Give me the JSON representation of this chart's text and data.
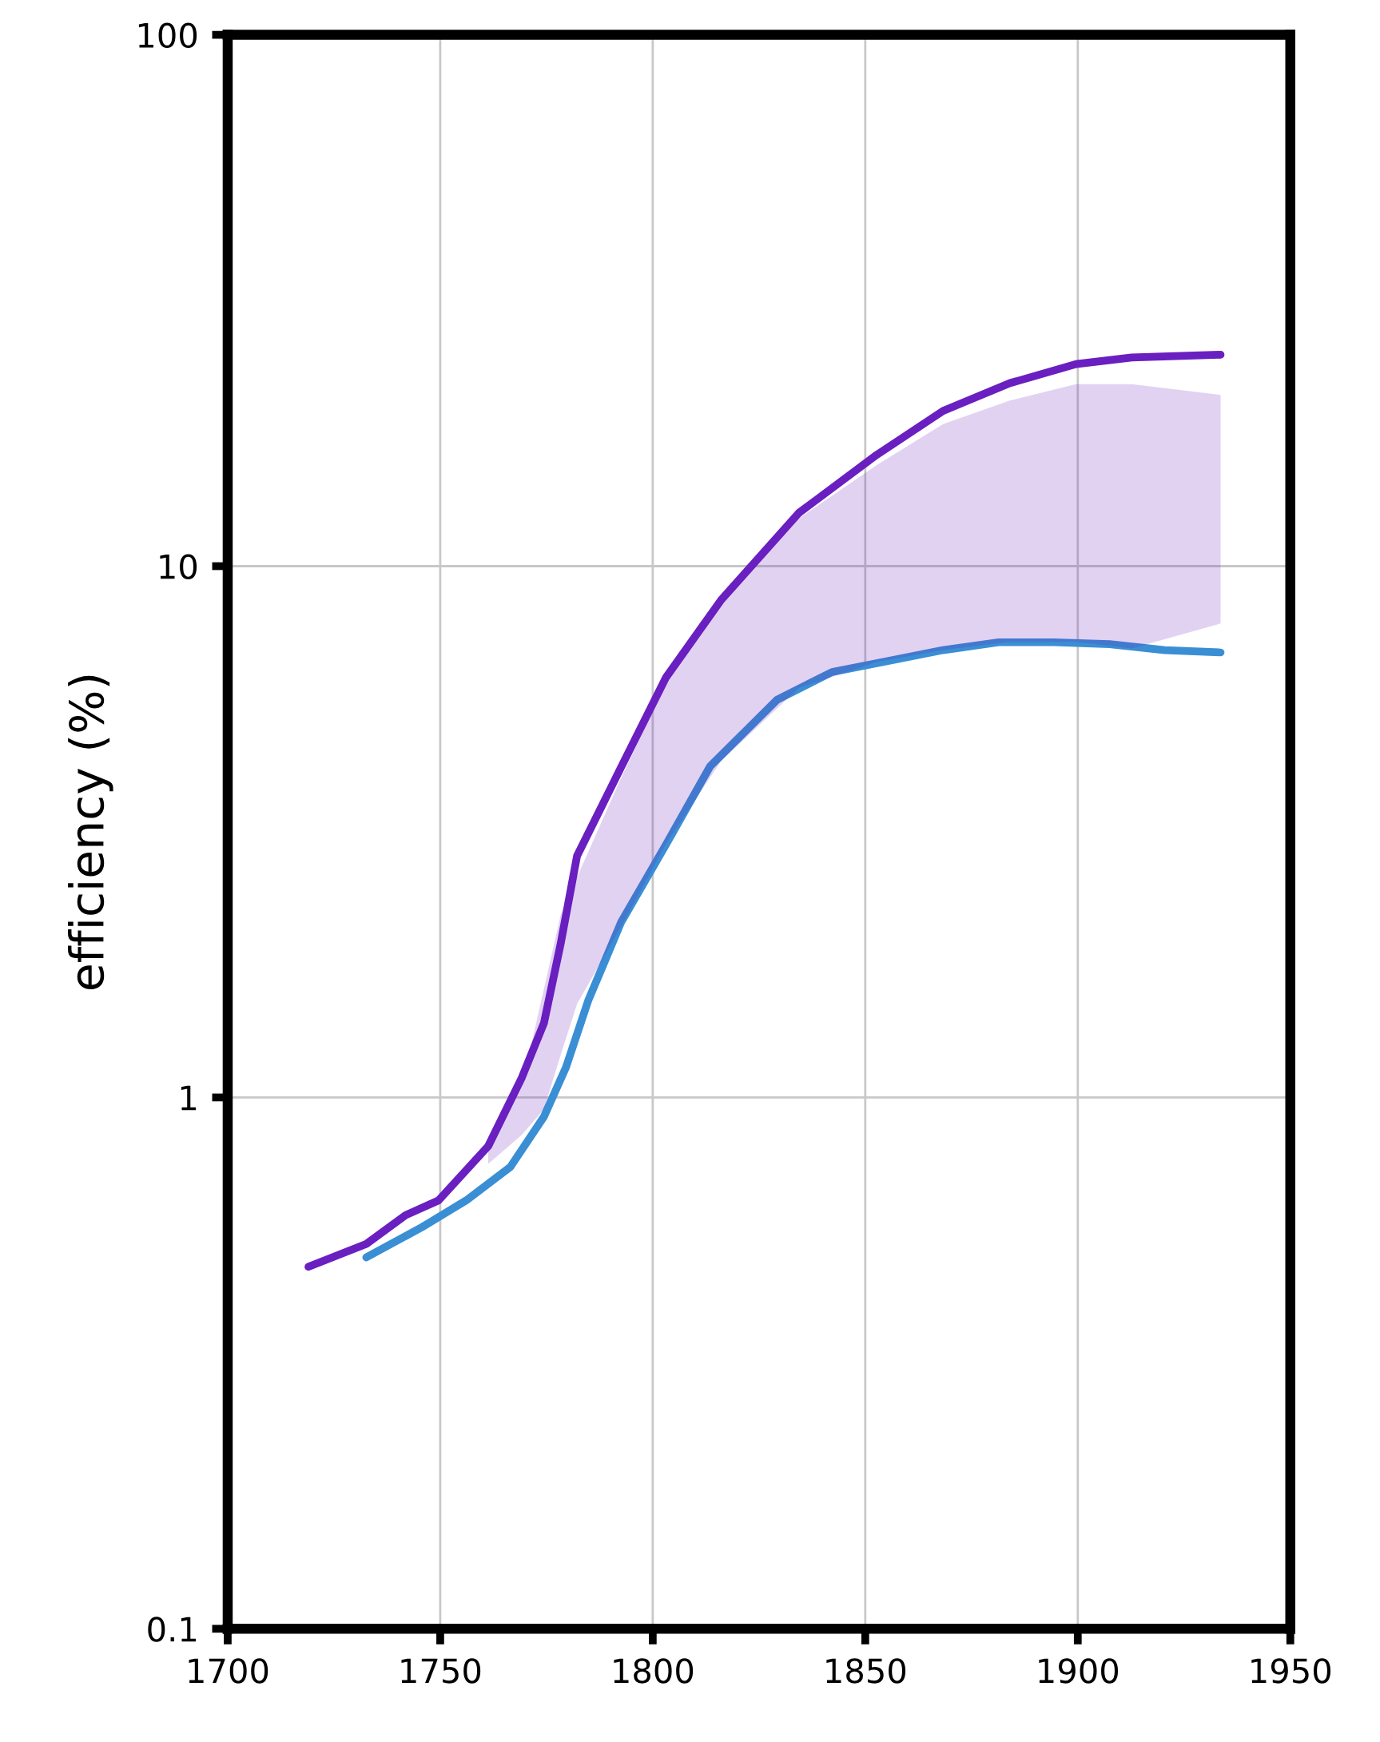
{
  "chart_data": {
    "type": "line",
    "ylabel": "efficiency (%)",
    "log": "y",
    "grid": true,
    "xlim": [
      1700,
      1950
    ],
    "xticks": [
      1700,
      1750,
      1800,
      1850,
      1900,
      1950
    ],
    "ylim": [
      0.1,
      100
    ],
    "yticks": [
      0.1,
      1,
      10,
      100
    ],
    "series": [
      {
        "color": "#6a1fc0",
        "x": [
          1719,
          1732.6,
          1741.8,
          1749.6,
          1761.3,
          1769.2,
          1774.4,
          1778.3,
          1782.2,
          1792.6,
          1803.1,
          1816.1,
          1834.4,
          1852.7,
          1868.3,
          1884,
          1899.6,
          1912.7,
          1933.6
        ],
        "values": [
          0.48,
          0.53,
          0.6,
          0.64,
          0.81,
          1.09,
          1.38,
          1.94,
          2.85,
          4.19,
          6.17,
          8.64,
          12.6,
          16.2,
          19.6,
          22.1,
          24,
          24.7,
          25
        ],
        "lower": [
          null,
          null,
          null,
          null,
          0.75,
          0.85,
          0.95,
          1.2,
          1.5,
          2.1,
          3.0,
          4.3,
          5.9,
          6.6,
          6.95,
          7.2,
          7.2,
          7.0,
          7.8
        ],
        "upper": [
          null,
          null,
          null,
          null,
          0.8,
          1.05,
          1.6,
          2.2,
          2.6,
          4.0,
          6.0,
          8.5,
          12.3,
          15.5,
          18.5,
          20.5,
          22,
          22,
          21
        ]
      },
      {
        "color": "#3a8fd4",
        "x": [
          1732.6,
          1745.7,
          1756.1,
          1766.5,
          1774.4,
          1779.6,
          1784.8,
          1792.6,
          1803.1,
          1813.5,
          1829.2,
          1842.2,
          1855.3,
          1868.3,
          1881.4,
          1894.4,
          1907.5,
          1920.5,
          1933.6
        ],
        "values": [
          0.5,
          0.57,
          0.64,
          0.74,
          0.92,
          1.14,
          1.52,
          2.14,
          2.99,
          4.2,
          5.6,
          6.32,
          6.63,
          6.95,
          7.19,
          7.19,
          7.13,
          6.95,
          6.88
        ]
      }
    ]
  }
}
